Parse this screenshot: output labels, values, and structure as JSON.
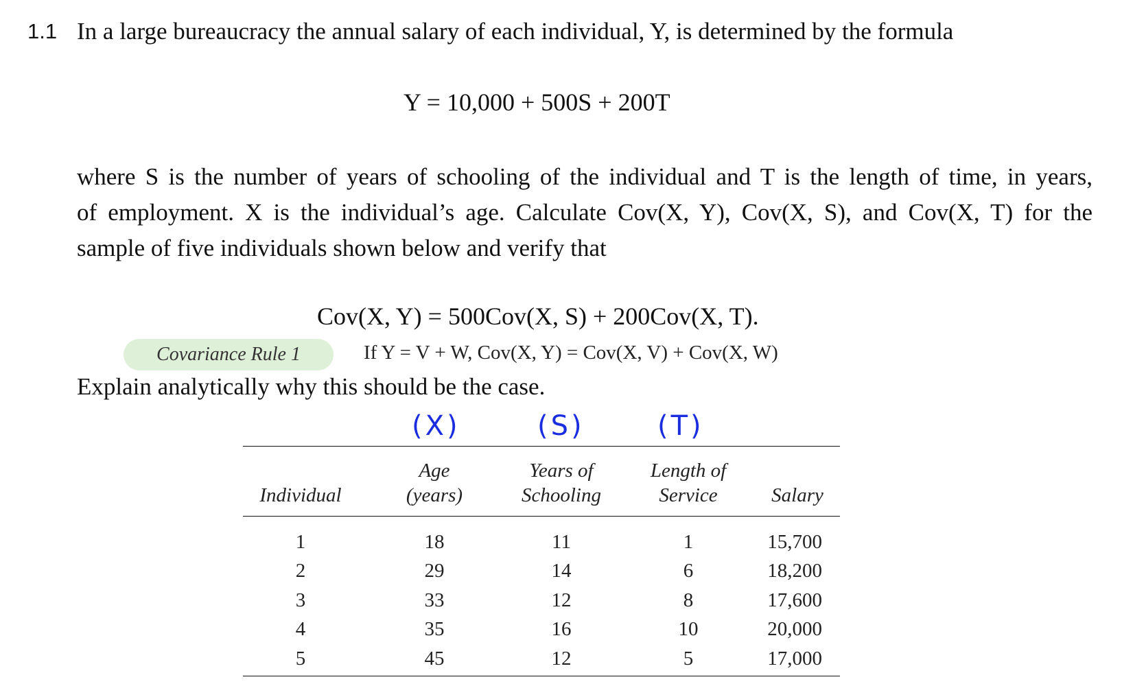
{
  "question": {
    "number": "1.1",
    "intro": "In a large bureaucracy the annual salary of each individual, Y, is determined by the formula",
    "formula": "Y = 10,000 + 500S + 200T",
    "paragraph_lines": [
      "where S is the number of years of schooling of the individual and T is the length of time, in years,",
      "of employment.  X is the individual’s age.  Calculate Cov(X, Y), Cov(X, S), and Cov(X, T) for the",
      "sample of five individuals shown below and verify that"
    ],
    "verify_equation": "Cov(X, Y) = 500Cov(X, S) + 200Cov(X, T).",
    "explain": "Explain analytically why this should be the case."
  },
  "covariance_rule": {
    "label": "Covariance Rule 1",
    "text": "If Y = V + W, Cov(X, Y)  = Cov(X, V) + Cov(X, W)"
  },
  "handwritten": {
    "x": "(X)",
    "s": "(S)",
    "t": "(T)"
  },
  "table": {
    "headers": [
      [
        "Individual"
      ],
      [
        "Age",
        "(years)"
      ],
      [
        "Years of",
        "Schooling"
      ],
      [
        "Length of",
        "Service"
      ],
      [
        "Salary"
      ]
    ],
    "rows": [
      [
        "1",
        "18",
        "11",
        "1",
        "15,700"
      ],
      [
        "2",
        "29",
        "14",
        "6",
        "18,200"
      ],
      [
        "3",
        "33",
        "12",
        "8",
        "17,600"
      ],
      [
        "4",
        "35",
        "16",
        "10",
        "20,000"
      ],
      [
        "5",
        "45",
        "12",
        "5",
        "17,000"
      ]
    ]
  }
}
